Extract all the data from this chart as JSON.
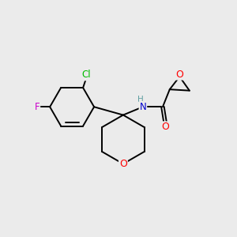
{
  "background_color": "#ebebeb",
  "bond_color": "#000000",
  "atom_colors": {
    "O": "#ff0000",
    "N": "#0000cd",
    "Cl": "#00bb00",
    "F": "#cc00cc",
    "H": "#5f9ea0",
    "C": "#000000"
  },
  "figsize": [
    3.0,
    3.0
  ],
  "dpi": 100,
  "lw": 1.4
}
